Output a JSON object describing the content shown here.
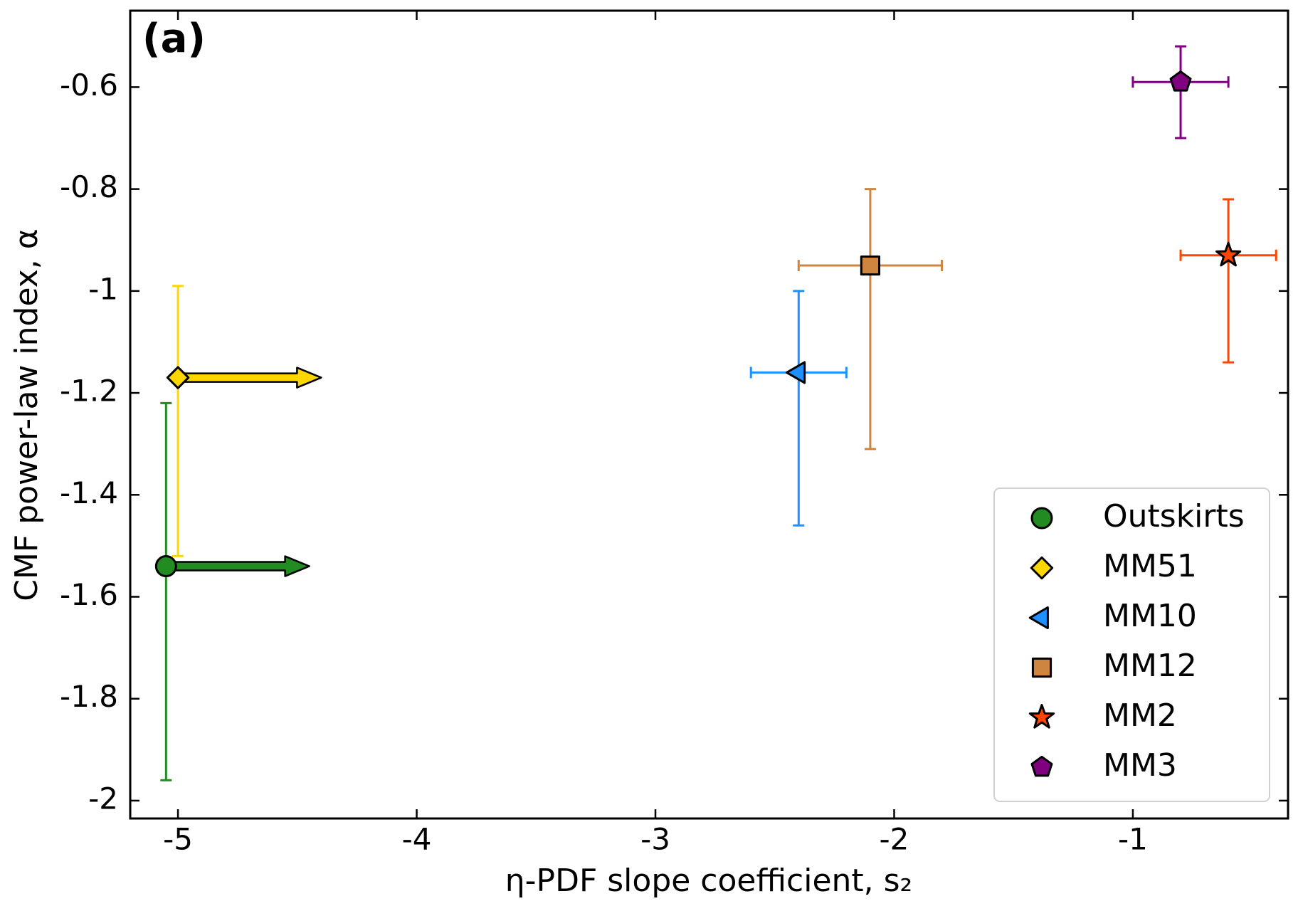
{
  "chart_data": {
    "type": "scatter",
    "title": "(a)",
    "x_label": "η-PDF slope coefficient, s₂",
    "y_label": "CMF power-law index, α",
    "xlim": [
      -5.2,
      -0.35
    ],
    "ylim": [
      -0.45,
      -2.035
    ],
    "xticks": [
      -5,
      -4,
      -3,
      -2,
      -1
    ],
    "yticks": [
      -0.6,
      -0.8,
      -1,
      -1.2,
      -1.4,
      -1.6,
      -1.8,
      -2
    ],
    "legend_position": "lower right",
    "series": [
      {
        "name": "Outskirts",
        "color": "#228b22",
        "marker": "circle",
        "x": -5.05,
        "y": -1.54,
        "y_err": [
          0.42,
          0.32
        ],
        "x_arrow": 0.6
      },
      {
        "name": "MM51",
        "color": "#ffd700",
        "marker": "diamond",
        "x": -5.0,
        "y": -1.17,
        "y_err": [
          0.35,
          0.18
        ],
        "x_arrow": 0.6
      },
      {
        "name": "MM10",
        "color": "#1e90ff",
        "marker": "triangle-left",
        "x": -2.4,
        "y": -1.16,
        "y_err": [
          0.3,
          0.16
        ],
        "x_err": [
          0.2,
          0.2
        ]
      },
      {
        "name": "MM12",
        "color": "#cd853f",
        "marker": "square",
        "x": -2.1,
        "y": -0.95,
        "y_err": [
          0.36,
          0.15
        ],
        "x_err": [
          0.3,
          0.3
        ]
      },
      {
        "name": "MM2",
        "color": "#ff4500",
        "marker": "star",
        "x": -0.6,
        "y": -0.93,
        "y_err": [
          0.21,
          0.11
        ],
        "x_err": [
          0.2,
          0.2
        ]
      },
      {
        "name": "MM3",
        "color": "#800080",
        "marker": "pentagon",
        "x": -0.8,
        "y": -0.59,
        "y_err": [
          0.11,
          0.07
        ],
        "x_err": [
          0.2,
          0.2
        ]
      }
    ]
  }
}
